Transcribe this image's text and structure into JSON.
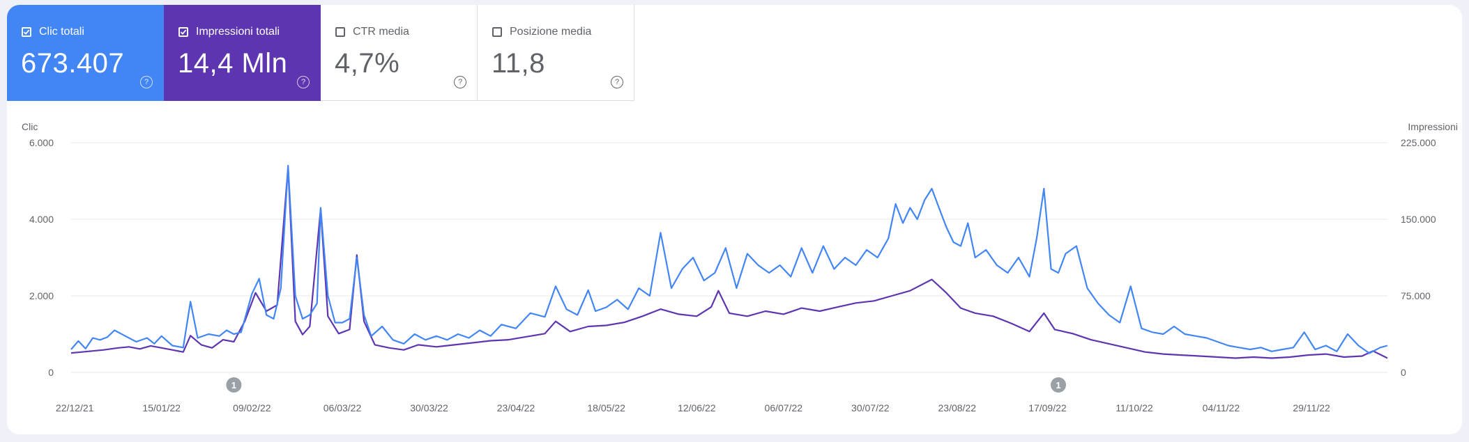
{
  "metrics": [
    {
      "label": "Clic totali",
      "value": "673.407",
      "checked": true,
      "color": "#4285f4"
    },
    {
      "label": "Impressioni totali",
      "value": "14,4 Mln",
      "checked": true,
      "color": "#5e35b1"
    },
    {
      "label": "CTR media",
      "value": "4,7%",
      "checked": false,
      "color": "#ffffff"
    },
    {
      "label": "Posizione media",
      "value": "11,8",
      "checked": false,
      "color": "#ffffff"
    }
  ],
  "chart_data": {
    "type": "line",
    "left_axis": {
      "label": "Clic",
      "ticks": [
        "6.000",
        "4.000",
        "2.000",
        "0"
      ],
      "ylim": [
        0,
        6000
      ]
    },
    "right_axis": {
      "label": "Impressioni",
      "ticks": [
        "225.000",
        "150.000",
        "75.000",
        "0"
      ],
      "ylim": [
        0,
        225000
      ]
    },
    "x_labels": [
      "22/12/21",
      "15/01/22",
      "09/02/22",
      "06/03/22",
      "30/03/22",
      "23/04/22",
      "18/05/22",
      "12/06/22",
      "06/07/22",
      "30/07/22",
      "23/08/22",
      "17/09/22",
      "11/10/22",
      "04/11/22",
      "29/11/22"
    ],
    "x_range": [
      "21/12/21",
      "20/12/22"
    ],
    "annotations": [
      {
        "date": "04/02/22",
        "label": "1"
      },
      {
        "date": "20/09/22",
        "label": "1"
      }
    ],
    "grid": true,
    "series": [
      {
        "name": "Clic totali",
        "axis": "left",
        "color": "#4285f4",
        "points": [
          [
            "21/12/21",
            600
          ],
          [
            "23/12/21",
            820
          ],
          [
            "25/12/21",
            620
          ],
          [
            "27/12/21",
            900
          ],
          [
            "29/12/21",
            850
          ],
          [
            "31/12/21",
            920
          ],
          [
            "02/01/22",
            1100
          ],
          [
            "05/01/22",
            950
          ],
          [
            "08/01/22",
            800
          ],
          [
            "11/01/22",
            900
          ],
          [
            "13/01/22",
            750
          ],
          [
            "15/01/22",
            950
          ],
          [
            "18/01/22",
            700
          ],
          [
            "21/01/22",
            650
          ],
          [
            "23/01/22",
            1850
          ],
          [
            "25/01/22",
            900
          ],
          [
            "28/01/22",
            1000
          ],
          [
            "31/01/22",
            950
          ],
          [
            "02/02/22",
            1100
          ],
          [
            "04/02/22",
            1000
          ],
          [
            "06/02/22",
            1050
          ],
          [
            "09/02/22",
            2050
          ],
          [
            "11/02/22",
            2450
          ],
          [
            "13/02/22",
            1500
          ],
          [
            "15/02/22",
            1400
          ],
          [
            "17/02/22",
            2200
          ],
          [
            "19/02/22",
            5400
          ],
          [
            "21/02/22",
            2000
          ],
          [
            "23/02/22",
            1400
          ],
          [
            "25/02/22",
            1500
          ],
          [
            "27/02/22",
            1800
          ],
          [
            "28/02/22",
            4300
          ],
          [
            "02/03/22",
            2000
          ],
          [
            "04/03/22",
            1300
          ],
          [
            "06/03/22",
            1300
          ],
          [
            "08/03/22",
            1400
          ],
          [
            "10/03/22",
            3000
          ],
          [
            "12/03/22",
            1500
          ],
          [
            "14/03/22",
            950
          ],
          [
            "17/03/22",
            1200
          ],
          [
            "20/03/22",
            850
          ],
          [
            "23/03/22",
            750
          ],
          [
            "26/03/22",
            1000
          ],
          [
            "29/03/22",
            850
          ],
          [
            "01/04/22",
            950
          ],
          [
            "04/04/22",
            850
          ],
          [
            "07/04/22",
            1000
          ],
          [
            "10/04/22",
            900
          ],
          [
            "13/04/22",
            1100
          ],
          [
            "16/04/22",
            950
          ],
          [
            "19/04/22",
            1250
          ],
          [
            "23/04/22",
            1150
          ],
          [
            "27/04/22",
            1550
          ],
          [
            "01/05/22",
            1450
          ],
          [
            "04/05/22",
            2250
          ],
          [
            "07/05/22",
            1650
          ],
          [
            "10/05/22",
            1500
          ],
          [
            "13/05/22",
            2150
          ],
          [
            "15/05/22",
            1600
          ],
          [
            "18/05/22",
            1700
          ],
          [
            "21/05/22",
            1900
          ],
          [
            "24/05/22",
            1650
          ],
          [
            "27/05/22",
            2200
          ],
          [
            "30/05/22",
            2000
          ],
          [
            "02/06/22",
            3650
          ],
          [
            "05/06/22",
            2200
          ],
          [
            "08/06/22",
            2700
          ],
          [
            "11/06/22",
            3000
          ],
          [
            "14/06/22",
            2400
          ],
          [
            "17/06/22",
            2600
          ],
          [
            "20/06/22",
            3250
          ],
          [
            "23/06/22",
            2200
          ],
          [
            "26/06/22",
            3100
          ],
          [
            "29/06/22",
            2800
          ],
          [
            "02/07/22",
            2600
          ],
          [
            "05/07/22",
            2800
          ],
          [
            "08/07/22",
            2500
          ],
          [
            "11/07/22",
            3250
          ],
          [
            "14/07/22",
            2600
          ],
          [
            "17/07/22",
            3300
          ],
          [
            "20/07/22",
            2700
          ],
          [
            "23/07/22",
            3000
          ],
          [
            "26/07/22",
            2800
          ],
          [
            "29/07/22",
            3200
          ],
          [
            "01/08/22",
            3000
          ],
          [
            "04/08/22",
            3500
          ],
          [
            "06/08/22",
            4400
          ],
          [
            "08/08/22",
            3900
          ],
          [
            "10/08/22",
            4300
          ],
          [
            "12/08/22",
            4000
          ],
          [
            "14/08/22",
            4500
          ],
          [
            "16/08/22",
            4800
          ],
          [
            "18/08/22",
            4300
          ],
          [
            "20/08/22",
            3800
          ],
          [
            "22/08/22",
            3400
          ],
          [
            "24/08/22",
            3300
          ],
          [
            "26/08/22",
            3900
          ],
          [
            "28/08/22",
            3000
          ],
          [
            "31/08/22",
            3200
          ],
          [
            "03/09/22",
            2800
          ],
          [
            "06/09/22",
            2600
          ],
          [
            "09/09/22",
            3000
          ],
          [
            "12/09/22",
            2500
          ],
          [
            "14/09/22",
            3500
          ],
          [
            "16/09/22",
            4800
          ],
          [
            "18/09/22",
            2700
          ],
          [
            "20/09/22",
            2600
          ],
          [
            "22/09/22",
            3100
          ],
          [
            "25/09/22",
            3300
          ],
          [
            "28/09/22",
            2200
          ],
          [
            "01/10/22",
            1800
          ],
          [
            "04/10/22",
            1500
          ],
          [
            "07/10/22",
            1300
          ],
          [
            "10/10/22",
            2250
          ],
          [
            "13/10/22",
            1150
          ],
          [
            "16/10/22",
            1050
          ],
          [
            "19/10/22",
            1000
          ],
          [
            "22/10/22",
            1200
          ],
          [
            "25/10/22",
            1000
          ],
          [
            "28/10/22",
            950
          ],
          [
            "31/10/22",
            900
          ],
          [
            "03/11/22",
            800
          ],
          [
            "06/11/22",
            700
          ],
          [
            "09/11/22",
            650
          ],
          [
            "12/11/22",
            600
          ],
          [
            "15/11/22",
            650
          ],
          [
            "18/11/22",
            550
          ],
          [
            "21/11/22",
            600
          ],
          [
            "24/11/22",
            650
          ],
          [
            "27/11/22",
            1050
          ],
          [
            "30/11/22",
            600
          ],
          [
            "03/12/22",
            700
          ],
          [
            "06/12/22",
            550
          ],
          [
            "09/12/22",
            1000
          ],
          [
            "12/12/22",
            700
          ],
          [
            "15/12/22",
            500
          ],
          [
            "18/12/22",
            650
          ],
          [
            "20/12/22",
            700
          ]
        ]
      },
      {
        "name": "Impressioni totali",
        "axis": "right",
        "color": "#5e35b1",
        "points": [
          [
            "21/12/21",
            19000
          ],
          [
            "24/12/21",
            20000
          ],
          [
            "27/12/21",
            21000
          ],
          [
            "30/12/21",
            22000
          ],
          [
            "03/01/22",
            24000
          ],
          [
            "06/01/22",
            25000
          ],
          [
            "09/01/22",
            23000
          ],
          [
            "12/01/22",
            26000
          ],
          [
            "15/01/22",
            24000
          ],
          [
            "18/01/22",
            22000
          ],
          [
            "21/01/22",
            20000
          ],
          [
            "23/01/22",
            36000
          ],
          [
            "26/01/22",
            27000
          ],
          [
            "29/01/22",
            24000
          ],
          [
            "01/02/22",
            32000
          ],
          [
            "04/02/22",
            30000
          ],
          [
            "07/02/22",
            50000
          ],
          [
            "10/02/22",
            78000
          ],
          [
            "13/02/22",
            60000
          ],
          [
            "16/02/22",
            66000
          ],
          [
            "19/02/22",
            201000
          ],
          [
            "21/02/22",
            50000
          ],
          [
            "23/02/22",
            37000
          ],
          [
            "25/02/22",
            45000
          ],
          [
            "28/02/22",
            160000
          ],
          [
            "02/03/22",
            55000
          ],
          [
            "05/03/22",
            38000
          ],
          [
            "08/03/22",
            42000
          ],
          [
            "10/03/22",
            115000
          ],
          [
            "12/03/22",
            50000
          ],
          [
            "15/03/22",
            27000
          ],
          [
            "19/03/22",
            24000
          ],
          [
            "23/03/22",
            22000
          ],
          [
            "27/03/22",
            27000
          ],
          [
            "01/04/22",
            25000
          ],
          [
            "06/04/22",
            27000
          ],
          [
            "11/04/22",
            29000
          ],
          [
            "16/04/22",
            31000
          ],
          [
            "21/04/22",
            32000
          ],
          [
            "26/04/22",
            35000
          ],
          [
            "01/05/22",
            38000
          ],
          [
            "04/05/22",
            50000
          ],
          [
            "08/05/22",
            40000
          ],
          [
            "13/05/22",
            45000
          ],
          [
            "18/05/22",
            46000
          ],
          [
            "23/05/22",
            49000
          ],
          [
            "28/05/22",
            55000
          ],
          [
            "02/06/22",
            62000
          ],
          [
            "07/06/22",
            57000
          ],
          [
            "12/06/22",
            55000
          ],
          [
            "16/06/22",
            64000
          ],
          [
            "18/06/22",
            80000
          ],
          [
            "21/06/22",
            58000
          ],
          [
            "26/06/22",
            55000
          ],
          [
            "01/07/22",
            60000
          ],
          [
            "06/07/22",
            57000
          ],
          [
            "11/07/22",
            63000
          ],
          [
            "16/07/22",
            60000
          ],
          [
            "21/07/22",
            64000
          ],
          [
            "26/07/22",
            68000
          ],
          [
            "31/07/22",
            70000
          ],
          [
            "05/08/22",
            75000
          ],
          [
            "10/08/22",
            80000
          ],
          [
            "16/08/22",
            91000
          ],
          [
            "20/08/22",
            78000
          ],
          [
            "24/08/22",
            63000
          ],
          [
            "28/08/22",
            58000
          ],
          [
            "02/09/22",
            55000
          ],
          [
            "07/09/22",
            48000
          ],
          [
            "12/09/22",
            40000
          ],
          [
            "16/09/22",
            58000
          ],
          [
            "19/09/22",
            42000
          ],
          [
            "24/09/22",
            38000
          ],
          [
            "29/09/22",
            32000
          ],
          [
            "04/10/22",
            28000
          ],
          [
            "09/10/22",
            24000
          ],
          [
            "14/10/22",
            20000
          ],
          [
            "19/10/22",
            18000
          ],
          [
            "24/10/22",
            17000
          ],
          [
            "29/10/22",
            16000
          ],
          [
            "03/11/22",
            15000
          ],
          [
            "08/11/22",
            14000
          ],
          [
            "13/11/22",
            15000
          ],
          [
            "18/11/22",
            14000
          ],
          [
            "23/11/22",
            15000
          ],
          [
            "28/11/22",
            17000
          ],
          [
            "03/12/22",
            18000
          ],
          [
            "08/12/22",
            15000
          ],
          [
            "13/12/22",
            16000
          ],
          [
            "16/12/22",
            21000
          ],
          [
            "20/12/22",
            14000
          ]
        ]
      }
    ]
  }
}
